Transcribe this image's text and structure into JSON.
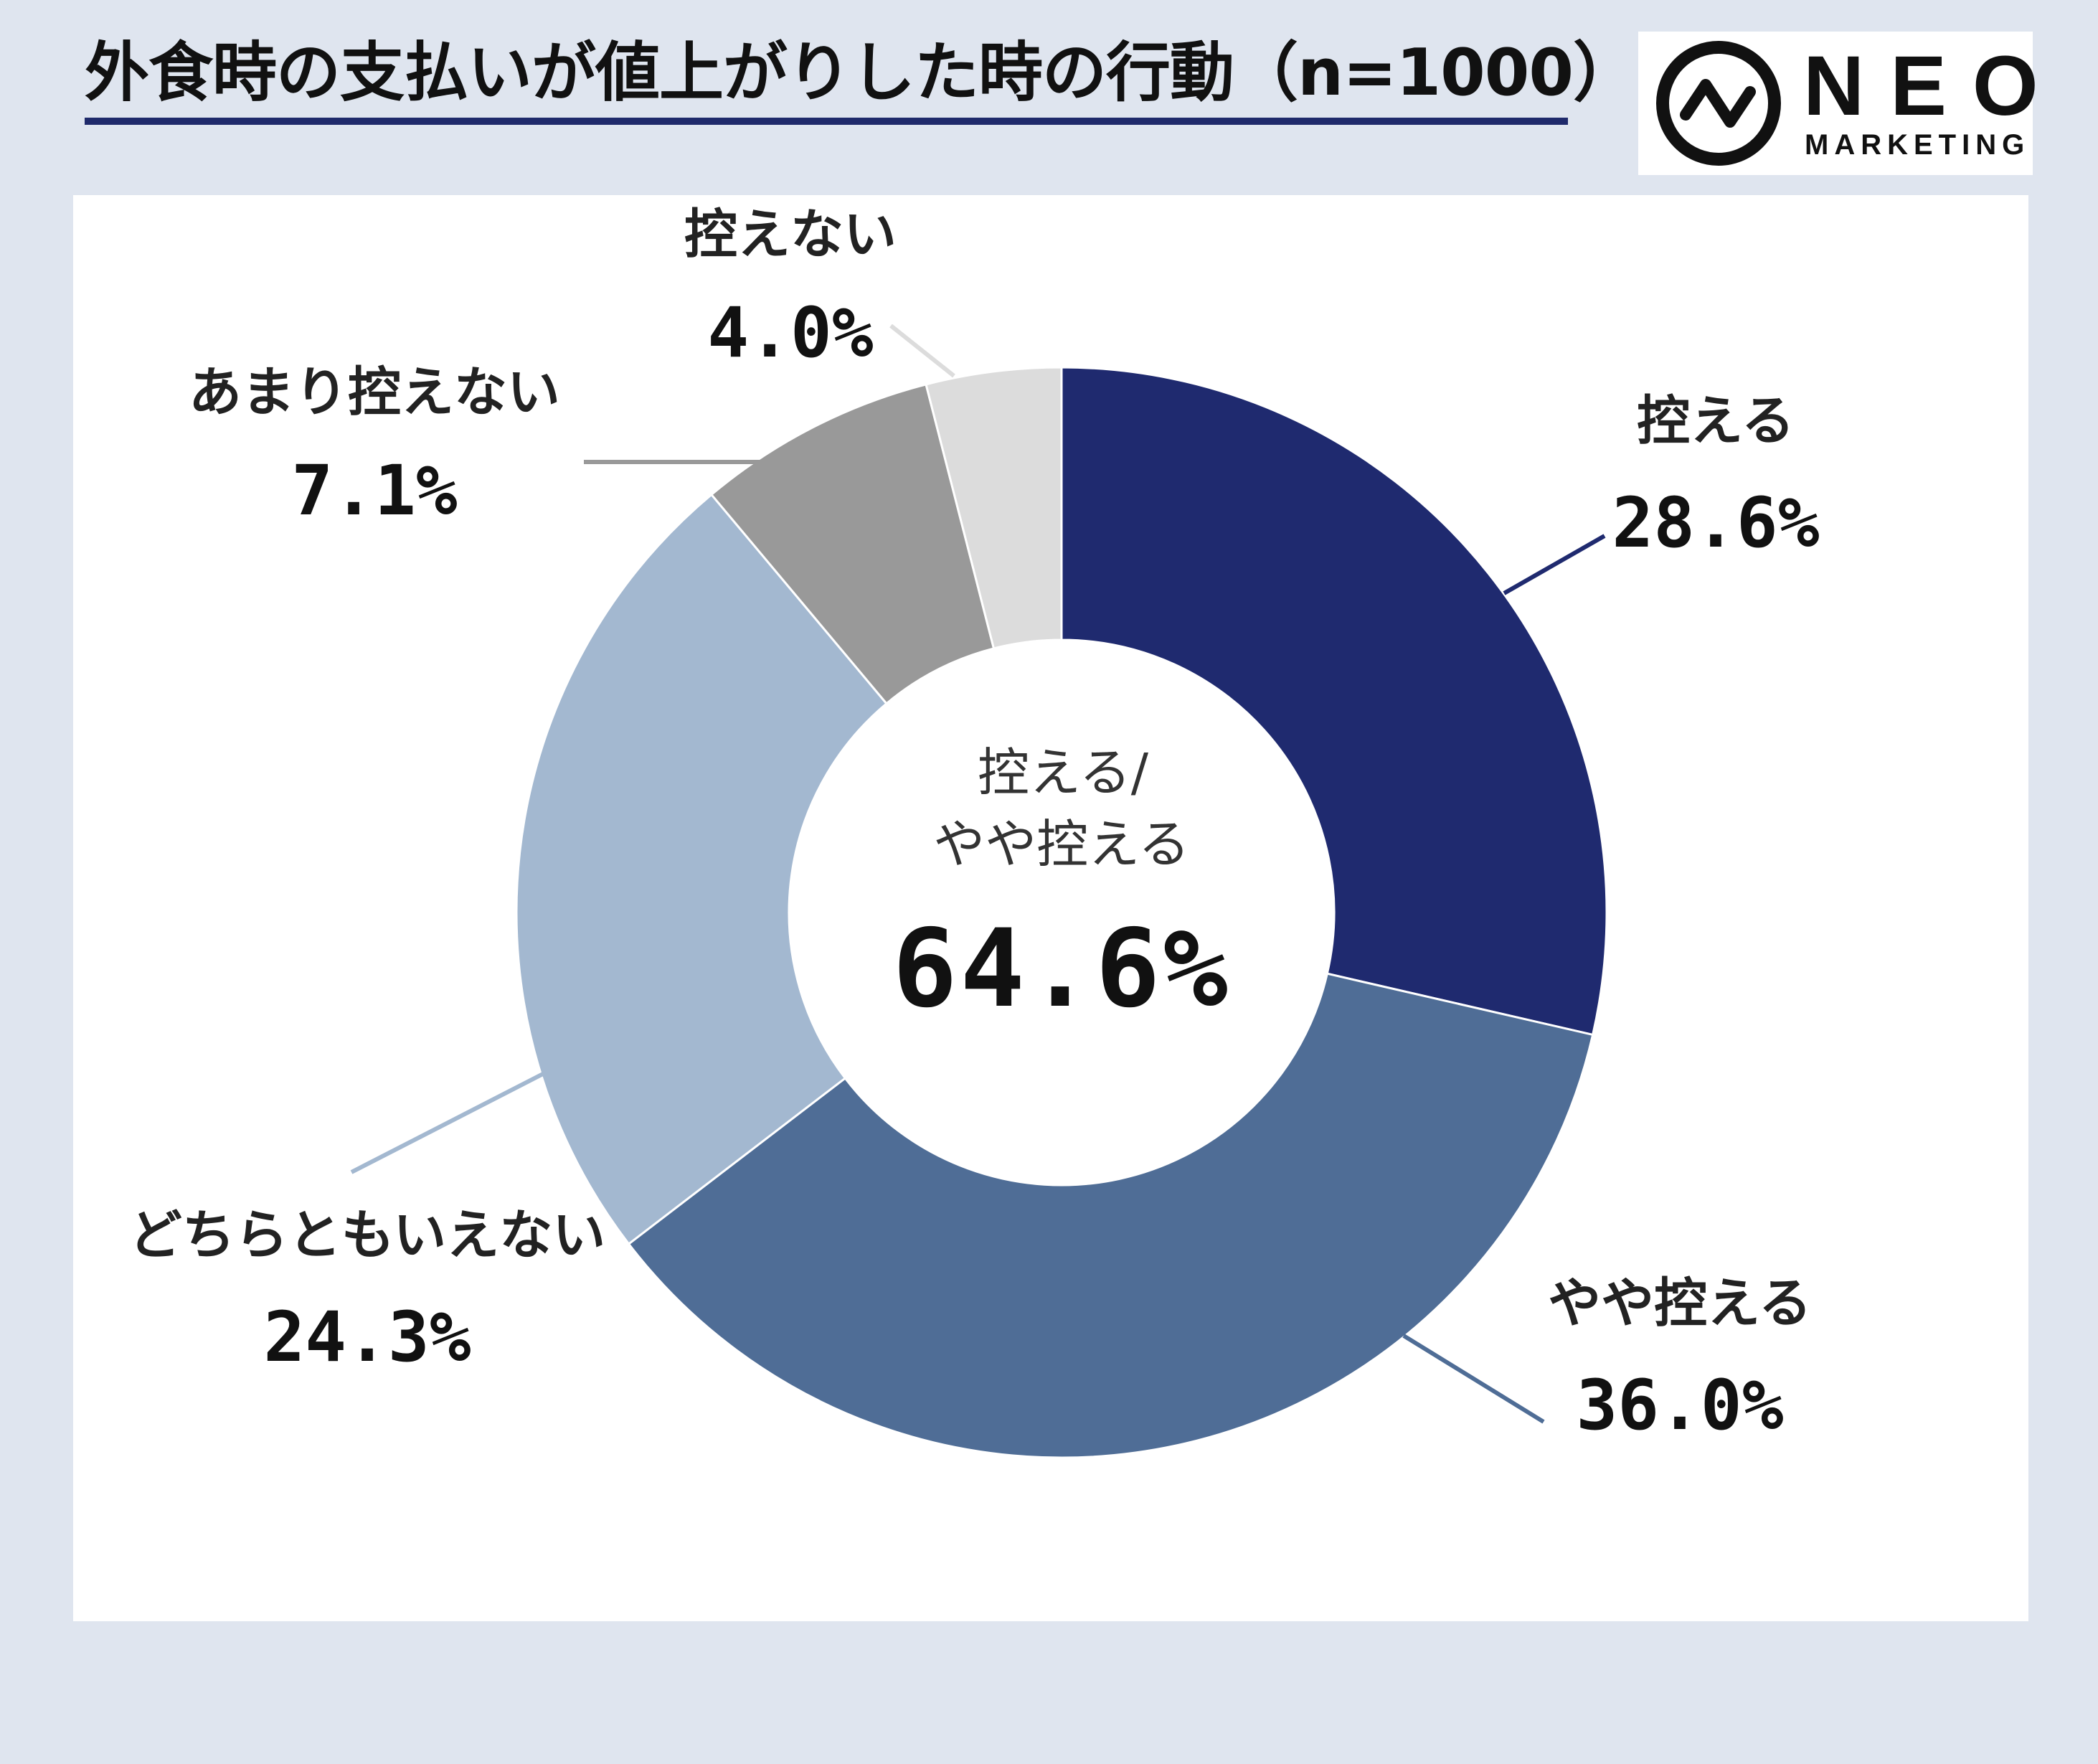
{
  "title": "外食時の支払いが値上がりした時の行動（n=1000）",
  "logo": {
    "word": "NEO",
    "sub": "MARKETING",
    "icon": "pulse-circle-icon"
  },
  "center": {
    "line1": "控える/",
    "line2": "やや控える",
    "value": "64.6%"
  },
  "colors": {
    "background": "#dfe5ef",
    "title_rule": "#1f2a6b",
    "slices": [
      "#1f2a6f",
      "#4f6d96",
      "#a3b8d0",
      "#999999",
      "#dcdcdc"
    ]
  },
  "chart_data": {
    "type": "pie",
    "donut": true,
    "start": "top, clockwise",
    "categories": [
      "控える",
      "やや控える",
      "どちらともいえない",
      "あまり控えない",
      "控えない"
    ],
    "values": [
      28.6,
      36.0,
      24.3,
      7.1,
      4.0
    ],
    "labels": [
      "28.6%",
      "36.0%",
      "24.3%",
      "7.1%",
      "4.0%"
    ],
    "unit": "%",
    "n": 1000
  }
}
